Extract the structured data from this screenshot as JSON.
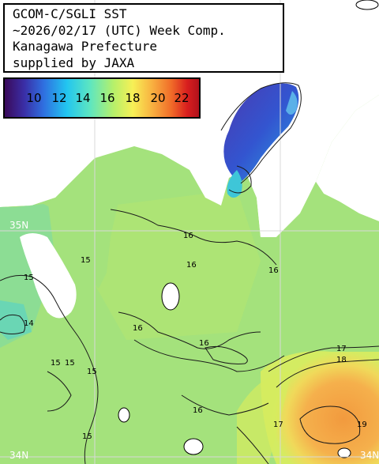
{
  "title": {
    "lines": [
      "GCOM-C/SGLI SST",
      "~2026/02/17 (UTC) Week Comp.",
      "Kanagawa Prefecture",
      "supplied by JAXA"
    ]
  },
  "legend": {
    "labels": [
      "10",
      "12",
      "14",
      "16",
      "18",
      "20",
      "22"
    ],
    "colors": [
      "#3a2ea6",
      "#2f6fe0",
      "#22c6f0",
      "#7ee8a6",
      "#f7f056",
      "#f8b040",
      "#e03a22"
    ]
  },
  "grid": {
    "lat_labels": [
      "35N",
      "34N",
      "34N"
    ]
  },
  "isotherms": {
    "labels": [
      "15",
      "16",
      "16",
      "15",
      "14",
      "16",
      "16",
      "15",
      "16",
      "17",
      "18",
      "15",
      "17",
      "16",
      "15",
      "15",
      "19"
    ]
  },
  "colors": {
    "land": "#ffffff",
    "sea_base": "#9be07a",
    "warm_current": "#f4a34a",
    "bay_cold": "#3d55c8",
    "grid": "#d8d8d8",
    "contour": "#1a1a1a"
  }
}
